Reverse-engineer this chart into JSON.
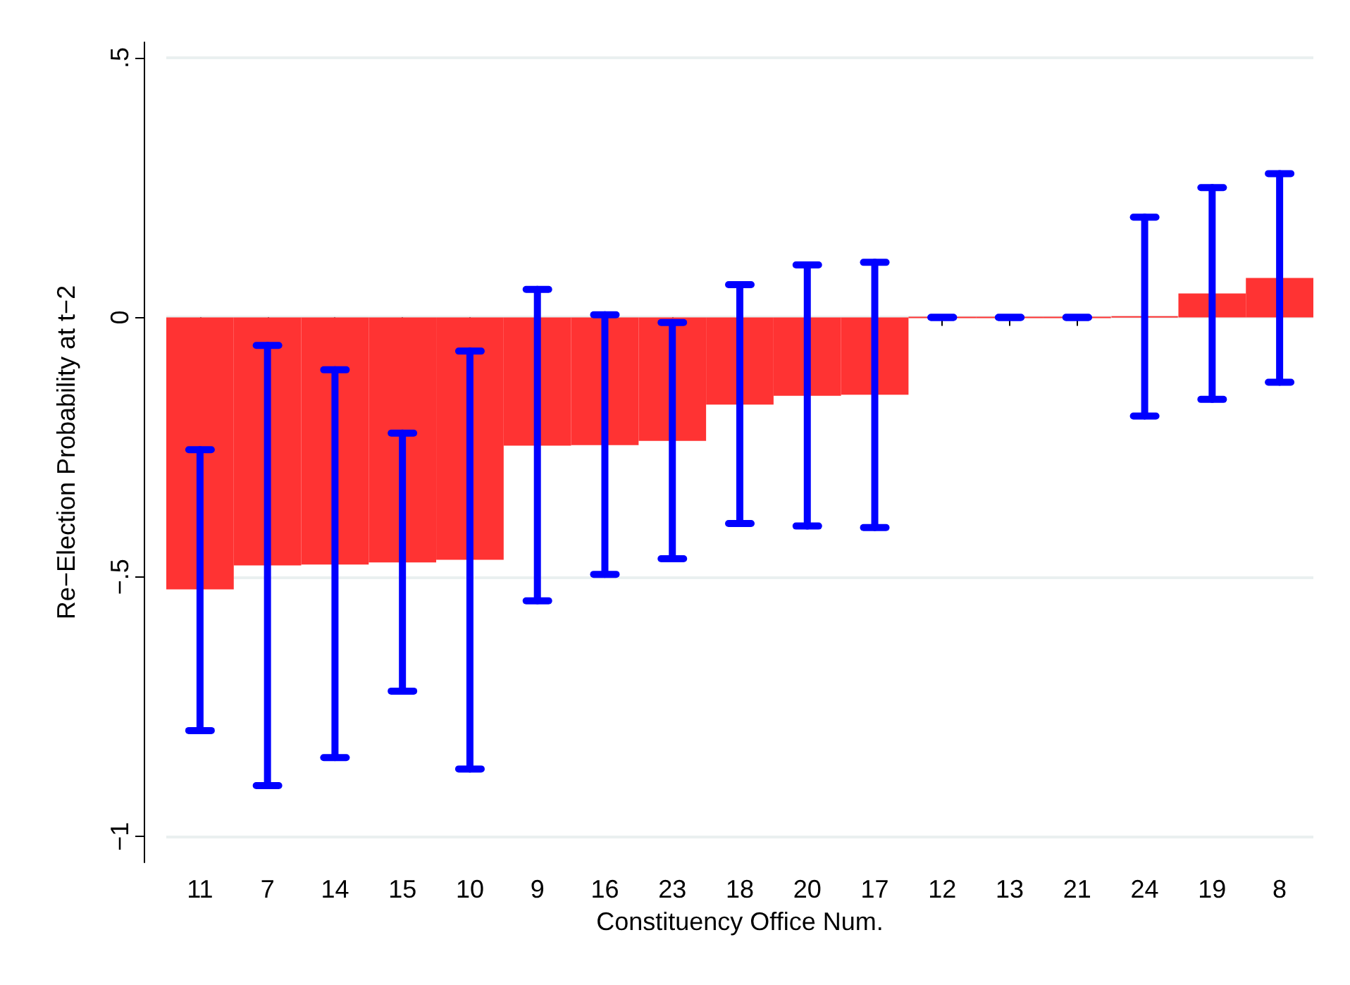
{
  "chart_data": {
    "type": "bar",
    "xlabel": "Constituency Office Num.",
    "ylabel": "Re−Election Probability at t−2",
    "categories": [
      "11",
      "7",
      "14",
      "15",
      "10",
      "9",
      "16",
      "23",
      "18",
      "20",
      "17",
      "12",
      "13",
      "21",
      "24",
      "19",
      "8"
    ],
    "series": [
      {
        "color": "#ff3333",
        "values": [
          -0.524,
          -0.478,
          -0.476,
          -0.472,
          -0.467,
          -0.247,
          -0.246,
          -0.238,
          -0.168,
          -0.151,
          -0.149,
          0,
          0,
          0,
          0.002,
          0.046,
          0.076
        ],
        "errors": [
          [
            -0.796,
            -0.255
          ],
          [
            -0.902,
            -0.054
          ],
          [
            -0.848,
            -0.101
          ],
          [
            -0.72,
            -0.223
          ],
          [
            -0.87,
            -0.065
          ],
          [
            -0.546,
            0.054
          ],
          [
            -0.495,
            0.005
          ],
          [
            -0.465,
            -0.01
          ],
          [
            -0.397,
            0.063
          ],
          [
            -0.402,
            0.101
          ],
          [
            -0.405,
            0.106
          ],
          [
            0,
            0
          ],
          [
            0,
            0
          ],
          [
            0,
            0
          ],
          [
            -0.19,
            0.193
          ],
          [
            -0.158,
            0.25
          ],
          [
            -0.125,
            0.277
          ]
        ]
      }
    ],
    "ylim": [
      -1.05,
      0.53
    ],
    "yticks": [
      {
        "value": -1,
        "label": "−1"
      },
      {
        "value": -0.5,
        "label": "−.5"
      },
      {
        "value": 0,
        "label": "0"
      },
      {
        "value": 0.5,
        "label": ".5"
      }
    ],
    "grid": "y"
  }
}
